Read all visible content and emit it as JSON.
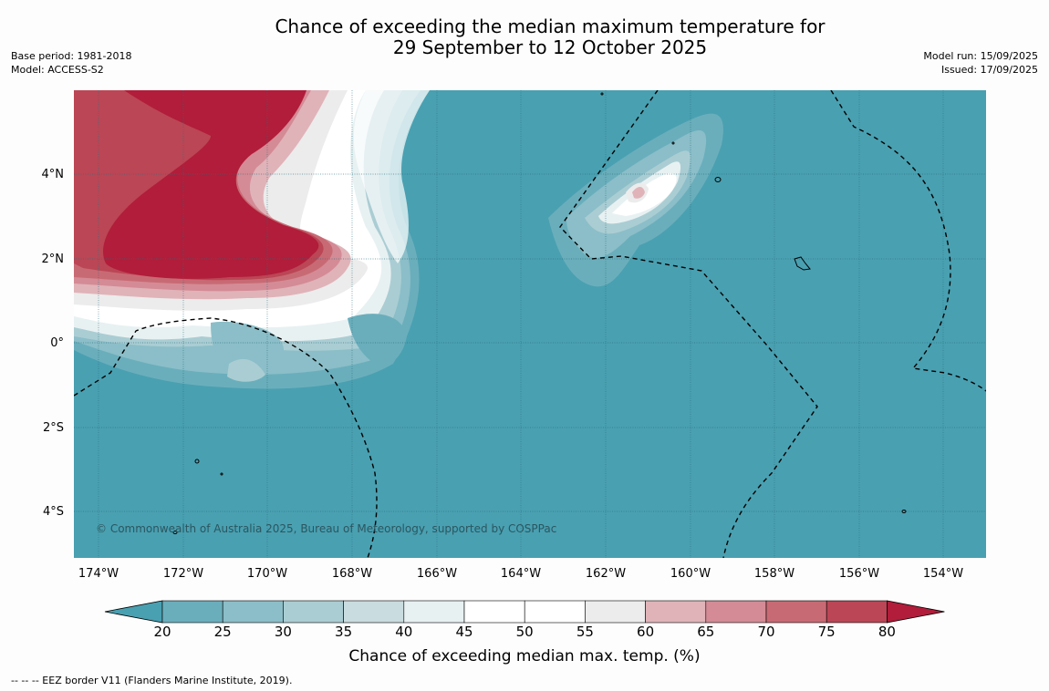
{
  "title_line1": "Chance of exceeding the median maximum temperature for",
  "title_line2": "29 September to 12 October 2025",
  "meta_left": {
    "base_period": "Base period: 1981-2018",
    "model": "Model: ACCESS-S2"
  },
  "meta_right": {
    "model_run": "Model run: 15/09/2025",
    "issued": "Issued: 17/09/2025"
  },
  "map": {
    "lat_labels": [
      "4°N",
      "2°N",
      "0°",
      "2°S",
      "4°S"
    ],
    "lon_labels": [
      "174°W",
      "172°W",
      "170°W",
      "168°W",
      "166°W",
      "164°W",
      "162°W",
      "160°W",
      "158°W",
      "156°W",
      "154°W"
    ],
    "copyright": "© Commonwealth of Australia 2025, Bureau of Meteorology, supported by COSPPac",
    "background_color": "#49a0b1"
  },
  "colorbar": {
    "ticks": [
      "20",
      "25",
      "30",
      "35",
      "40",
      "45",
      "50",
      "55",
      "60",
      "65",
      "70",
      "75",
      "80"
    ],
    "colors": [
      "#49a0b1",
      "#6aaebc",
      "#8bbec8",
      "#aacdd3",
      "#c9dcdf",
      "#e8f1f2",
      "#ffffff",
      "#ffffff",
      "#ececec",
      "#e0b3b9",
      "#d48b95",
      "#c86a74",
      "#bb4655",
      "#b11d3a"
    ],
    "label": "Chance of exceeding median max. temp. (%)"
  },
  "footnote": "--  --  -- EEZ border V11 (Flanders Marine Institute, 2019)."
}
